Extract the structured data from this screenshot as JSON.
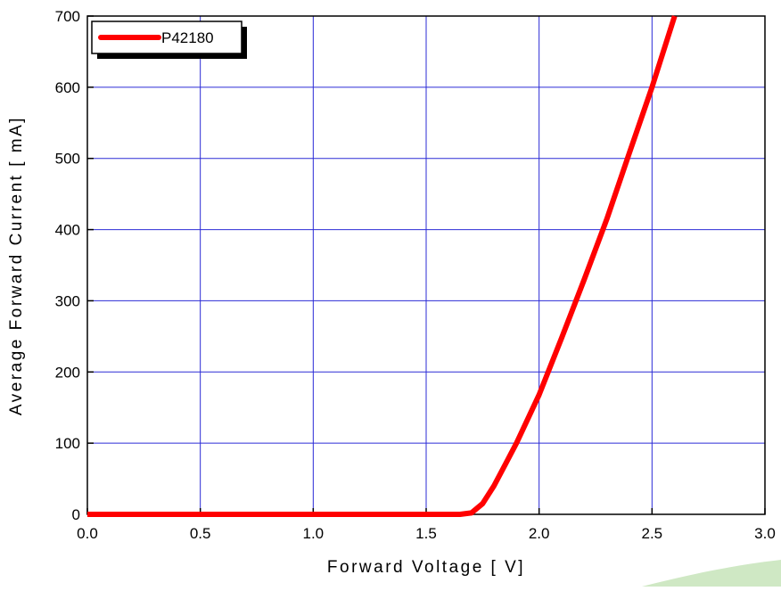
{
  "chart_data": {
    "type": "line",
    "x_label": "Forward Voltage [ V]",
    "y_label": "Average Forward Current [ mA]",
    "xlim": [
      0,
      3.0
    ],
    "ylim": [
      0,
      700
    ],
    "xticks": [
      {
        "value": 0,
        "label": "0.0"
      },
      0.5,
      {
        "value": 1,
        "label": "1.0"
      },
      1.5,
      {
        "value": 2,
        "label": "2.0"
      },
      2.5,
      {
        "value": 3,
        "label": "3.0"
      }
    ],
    "yticks": [
      0,
      100,
      200,
      300,
      400,
      500,
      600,
      700
    ],
    "grid": true,
    "grid_color": "#2b2bd6",
    "legend": "upper left",
    "series": [
      {
        "name": "P42180",
        "color": "#ff0000",
        "x": [
          0,
          0.5,
          1.0,
          1.5,
          1.65,
          1.7,
          1.75,
          1.8,
          1.85,
          1.9,
          2.0,
          2.1,
          2.2,
          2.3,
          2.4,
          2.5,
          2.6
        ],
        "values": [
          0,
          0,
          0,
          0,
          0,
          2,
          15,
          40,
          70,
          100,
          168,
          248,
          330,
          415,
          508,
          600,
          700
        ]
      }
    ]
  }
}
